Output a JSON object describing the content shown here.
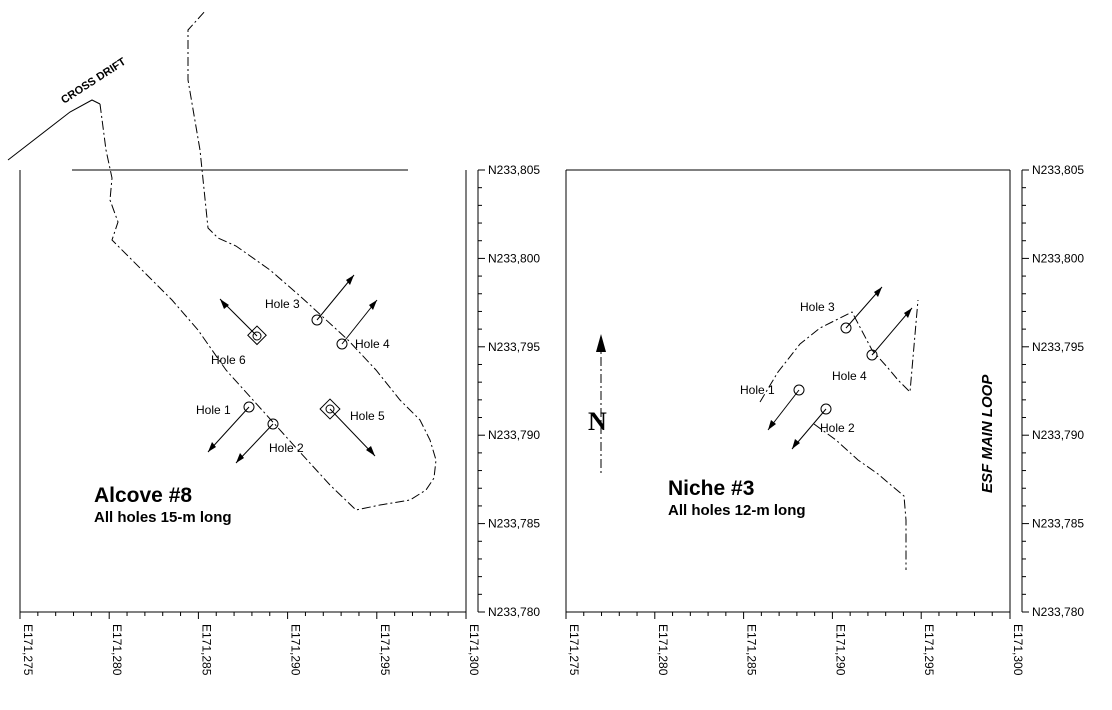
{
  "left_panel": {
    "title": "Alcove #8",
    "subtitle": "All holes 15-m  long",
    "cross_drift_label": "CROSS DRIFT",
    "holes": [
      {
        "id": "hole-1",
        "label": "Hole 1",
        "symbol": "circle"
      },
      {
        "id": "hole-2",
        "label": "Hole 2",
        "symbol": "circle"
      },
      {
        "id": "hole-3",
        "label": "Hole 3",
        "symbol": "circle"
      },
      {
        "id": "hole-4",
        "label": "Hole 4",
        "symbol": "circle"
      },
      {
        "id": "hole-5",
        "label": "Hole 5",
        "symbol": "diamond-circle"
      },
      {
        "id": "hole-6",
        "label": "Hole 6",
        "symbol": "diamond-circle"
      }
    ],
    "x_ticks": [
      "E171,275",
      "E171,280",
      "E171,285",
      "E171,290",
      "E171,295",
      "E171,300"
    ]
  },
  "right_panel": {
    "title": "Niche #3",
    "subtitle": "All holes 12-m  long",
    "esf_label": "ESF MAIN LOOP",
    "holes": [
      {
        "id": "hole-1",
        "label": "Hole 1"
      },
      {
        "id": "hole-2",
        "label": "Hole 2"
      },
      {
        "id": "hole-3",
        "label": "Hole 3"
      },
      {
        "id": "hole-4",
        "label": "Hole 4"
      }
    ],
    "x_ticks": [
      "E171,275",
      "E171,280",
      "E171,285",
      "E171,290",
      "E171,295",
      "E171,300"
    ]
  },
  "y_ticks": [
    "N233,805",
    "N233,800",
    "N233,795",
    "N233,790",
    "N233,785",
    "N233,780"
  ],
  "north_label": "N"
}
